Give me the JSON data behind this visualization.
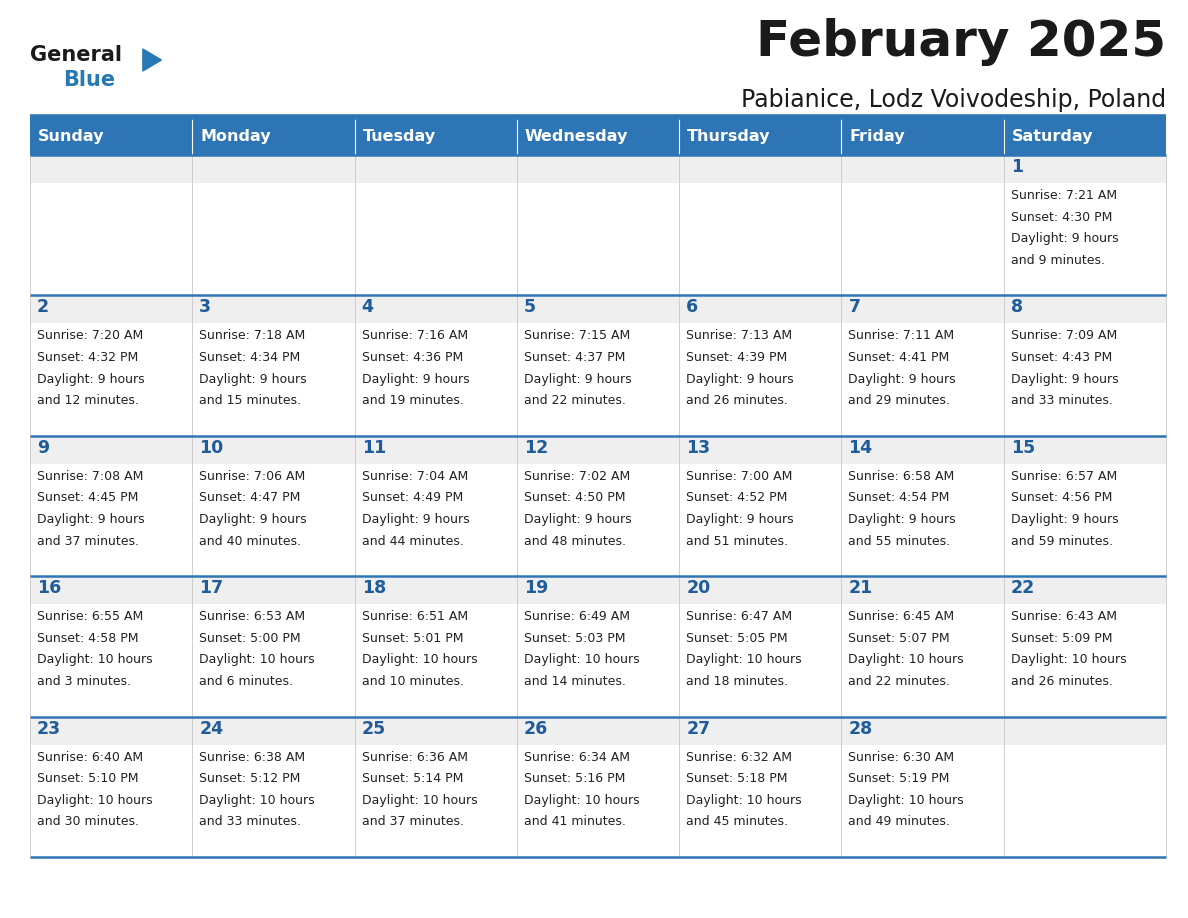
{
  "title": "February 2025",
  "subtitle": "Pabianice, Lodz Voivodeship, Poland",
  "days_of_week": [
    "Sunday",
    "Monday",
    "Tuesday",
    "Wednesday",
    "Thursday",
    "Friday",
    "Saturday"
  ],
  "header_bg": "#2E75B6",
  "header_text": "#FFFFFF",
  "cell_bg_white": "#FFFFFF",
  "cell_bg_gray": "#EFEFEF",
  "cell_text_color": "#222222",
  "day_number_color": "#1F5C99",
  "separator_color": "#2E75B6",
  "logo_general_color": "#1A1A1A",
  "logo_blue_color": "#2779B6",
  "title_color": "#1A1A1A",
  "subtitle_color": "#1A1A1A",
  "calendar_data": [
    {
      "day": 1,
      "col": 6,
      "row": 0,
      "sunrise": "7:21 AM",
      "sunset": "4:30 PM",
      "daylight": "9 hours and 9 minutes."
    },
    {
      "day": 2,
      "col": 0,
      "row": 1,
      "sunrise": "7:20 AM",
      "sunset": "4:32 PM",
      "daylight": "9 hours and 12 minutes."
    },
    {
      "day": 3,
      "col": 1,
      "row": 1,
      "sunrise": "7:18 AM",
      "sunset": "4:34 PM",
      "daylight": "9 hours and 15 minutes."
    },
    {
      "day": 4,
      "col": 2,
      "row": 1,
      "sunrise": "7:16 AM",
      "sunset": "4:36 PM",
      "daylight": "9 hours and 19 minutes."
    },
    {
      "day": 5,
      "col": 3,
      "row": 1,
      "sunrise": "7:15 AM",
      "sunset": "4:37 PM",
      "daylight": "9 hours and 22 minutes."
    },
    {
      "day": 6,
      "col": 4,
      "row": 1,
      "sunrise": "7:13 AM",
      "sunset": "4:39 PM",
      "daylight": "9 hours and 26 minutes."
    },
    {
      "day": 7,
      "col": 5,
      "row": 1,
      "sunrise": "7:11 AM",
      "sunset": "4:41 PM",
      "daylight": "9 hours and 29 minutes."
    },
    {
      "day": 8,
      "col": 6,
      "row": 1,
      "sunrise": "7:09 AM",
      "sunset": "4:43 PM",
      "daylight": "9 hours and 33 minutes."
    },
    {
      "day": 9,
      "col": 0,
      "row": 2,
      "sunrise": "7:08 AM",
      "sunset": "4:45 PM",
      "daylight": "9 hours and 37 minutes."
    },
    {
      "day": 10,
      "col": 1,
      "row": 2,
      "sunrise": "7:06 AM",
      "sunset": "4:47 PM",
      "daylight": "9 hours and 40 minutes."
    },
    {
      "day": 11,
      "col": 2,
      "row": 2,
      "sunrise": "7:04 AM",
      "sunset": "4:49 PM",
      "daylight": "9 hours and 44 minutes."
    },
    {
      "day": 12,
      "col": 3,
      "row": 2,
      "sunrise": "7:02 AM",
      "sunset": "4:50 PM",
      "daylight": "9 hours and 48 minutes."
    },
    {
      "day": 13,
      "col": 4,
      "row": 2,
      "sunrise": "7:00 AM",
      "sunset": "4:52 PM",
      "daylight": "9 hours and 51 minutes."
    },
    {
      "day": 14,
      "col": 5,
      "row": 2,
      "sunrise": "6:58 AM",
      "sunset": "4:54 PM",
      "daylight": "9 hours and 55 minutes."
    },
    {
      "day": 15,
      "col": 6,
      "row": 2,
      "sunrise": "6:57 AM",
      "sunset": "4:56 PM",
      "daylight": "9 hours and 59 minutes."
    },
    {
      "day": 16,
      "col": 0,
      "row": 3,
      "sunrise": "6:55 AM",
      "sunset": "4:58 PM",
      "daylight": "10 hours and 3 minutes."
    },
    {
      "day": 17,
      "col": 1,
      "row": 3,
      "sunrise": "6:53 AM",
      "sunset": "5:00 PM",
      "daylight": "10 hours and 6 minutes."
    },
    {
      "day": 18,
      "col": 2,
      "row": 3,
      "sunrise": "6:51 AM",
      "sunset": "5:01 PM",
      "daylight": "10 hours and 10 minutes."
    },
    {
      "day": 19,
      "col": 3,
      "row": 3,
      "sunrise": "6:49 AM",
      "sunset": "5:03 PM",
      "daylight": "10 hours and 14 minutes."
    },
    {
      "day": 20,
      "col": 4,
      "row": 3,
      "sunrise": "6:47 AM",
      "sunset": "5:05 PM",
      "daylight": "10 hours and 18 minutes."
    },
    {
      "day": 21,
      "col": 5,
      "row": 3,
      "sunrise": "6:45 AM",
      "sunset": "5:07 PM",
      "daylight": "10 hours and 22 minutes."
    },
    {
      "day": 22,
      "col": 6,
      "row": 3,
      "sunrise": "6:43 AM",
      "sunset": "5:09 PM",
      "daylight": "10 hours and 26 minutes."
    },
    {
      "day": 23,
      "col": 0,
      "row": 4,
      "sunrise": "6:40 AM",
      "sunset": "5:10 PM",
      "daylight": "10 hours and 30 minutes."
    },
    {
      "day": 24,
      "col": 1,
      "row": 4,
      "sunrise": "6:38 AM",
      "sunset": "5:12 PM",
      "daylight": "10 hours and 33 minutes."
    },
    {
      "day": 25,
      "col": 2,
      "row": 4,
      "sunrise": "6:36 AM",
      "sunset": "5:14 PM",
      "daylight": "10 hours and 37 minutes."
    },
    {
      "day": 26,
      "col": 3,
      "row": 4,
      "sunrise": "6:34 AM",
      "sunset": "5:16 PM",
      "daylight": "10 hours and 41 minutes."
    },
    {
      "day": 27,
      "col": 4,
      "row": 4,
      "sunrise": "6:32 AM",
      "sunset": "5:18 PM",
      "daylight": "10 hours and 45 minutes."
    },
    {
      "day": 28,
      "col": 5,
      "row": 4,
      "sunrise": "6:30 AM",
      "sunset": "5:19 PM",
      "daylight": "10 hours and 49 minutes."
    }
  ],
  "num_rows": 5,
  "num_cols": 7
}
